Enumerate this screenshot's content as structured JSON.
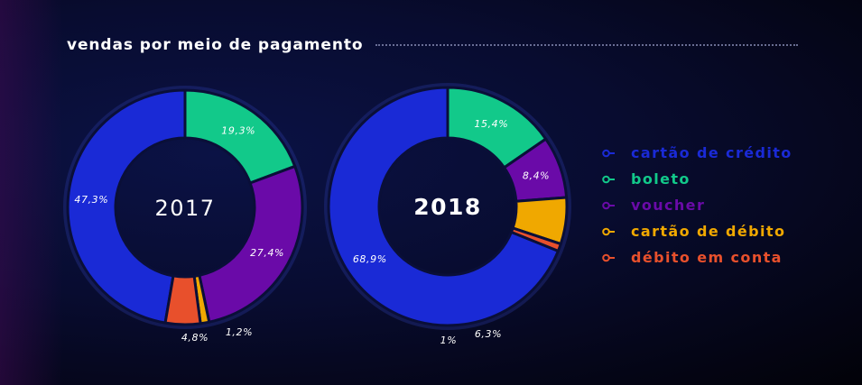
{
  "title": "vendas por meio de pagamento",
  "colors": {
    "cartao_credito": "#1a2ad6",
    "boleto": "#12c98a",
    "voucher": "#6a0aa8",
    "cartao_debito": "#f0a800",
    "debito_conta": "#e8502c"
  },
  "legend": [
    {
      "label": "cartão de crédito",
      "color": "#1a2ad6"
    },
    {
      "label": "boleto",
      "color": "#12c98a"
    },
    {
      "label": "voucher",
      "color": "#6a0aa8"
    },
    {
      "label": "cartão de débito",
      "color": "#f0a800"
    },
    {
      "label": "débito em conta",
      "color": "#e8502c"
    }
  ],
  "chart_data": [
    {
      "type": "pie",
      "title": "2017",
      "categories": [
        "cartão de crédito",
        "boleto",
        "voucher",
        "cartão de débito",
        "débito em conta"
      ],
      "values": [
        47.3,
        19.3,
        27.4,
        1.2,
        4.8
      ],
      "labels": [
        "47,3%",
        "19,3%",
        "27,4%",
        "1,2%",
        "4,8%"
      ]
    },
    {
      "type": "pie",
      "title": "2018",
      "categories": [
        "cartão de crédito",
        "boleto",
        "voucher",
        "cartão de débito",
        "débito em conta"
      ],
      "values": [
        68.9,
        15.4,
        8.4,
        6.3,
        1.0
      ],
      "labels": [
        "68,9%",
        "15,4%",
        "8,4%",
        "6,3%",
        "1%"
      ]
    }
  ]
}
